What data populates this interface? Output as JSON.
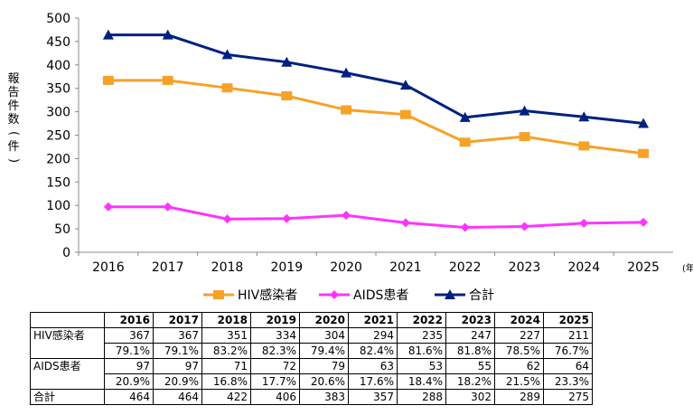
{
  "chart_data": {
    "type": "line",
    "categories": [
      "2016",
      "2017",
      "2018",
      "2019",
      "2020",
      "2021",
      "2022",
      "2023",
      "2024",
      "2025"
    ],
    "x_unit": "(年)",
    "ylabel": "報告件数(件)",
    "ylim": [
      0,
      500
    ],
    "yticks": [
      0,
      50,
      100,
      150,
      200,
      250,
      300,
      350,
      400,
      450,
      500
    ],
    "grid": false,
    "legend_position": "bottom",
    "series": [
      {
        "name": "HIV感染者",
        "color": "#F7A128",
        "marker": "square",
        "values": [
          367,
          367,
          351,
          334,
          304,
          294,
          235,
          247,
          227,
          211
        ]
      },
      {
        "name": "AIDS患者",
        "color": "#FF33FF",
        "marker": "diamond",
        "values": [
          97,
          97,
          71,
          72,
          79,
          63,
          53,
          55,
          62,
          64
        ]
      },
      {
        "name": "合計",
        "color": "#002080",
        "marker": "triangle",
        "values": [
          464,
          464,
          422,
          406,
          383,
          357,
          288,
          302,
          289,
          275
        ]
      }
    ]
  },
  "table": {
    "years": [
      "2016",
      "2017",
      "2018",
      "2019",
      "2020",
      "2021",
      "2022",
      "2023",
      "2024",
      "2025"
    ],
    "hiv_label": "HIV感染者",
    "hiv_counts": [
      "367",
      "367",
      "351",
      "334",
      "304",
      "294",
      "235",
      "247",
      "227",
      "211"
    ],
    "hiv_pct": [
      "79.1%",
      "79.1%",
      "83.2%",
      "82.3%",
      "79.4%",
      "82.4%",
      "81.6%",
      "81.8%",
      "78.5%",
      "76.7%"
    ],
    "aids_label": "AIDS患者",
    "aids_counts": [
      "97",
      "97",
      "71",
      "72",
      "79",
      "63",
      "53",
      "55",
      "62",
      "64"
    ],
    "aids_pct": [
      "20.9%",
      "20.9%",
      "16.8%",
      "17.7%",
      "20.6%",
      "17.6%",
      "18.4%",
      "18.2%",
      "21.5%",
      "23.3%"
    ],
    "total_label": "合計",
    "total_counts": [
      "464",
      "464",
      "422",
      "406",
      "383",
      "357",
      "288",
      "302",
      "289",
      "275"
    ]
  }
}
